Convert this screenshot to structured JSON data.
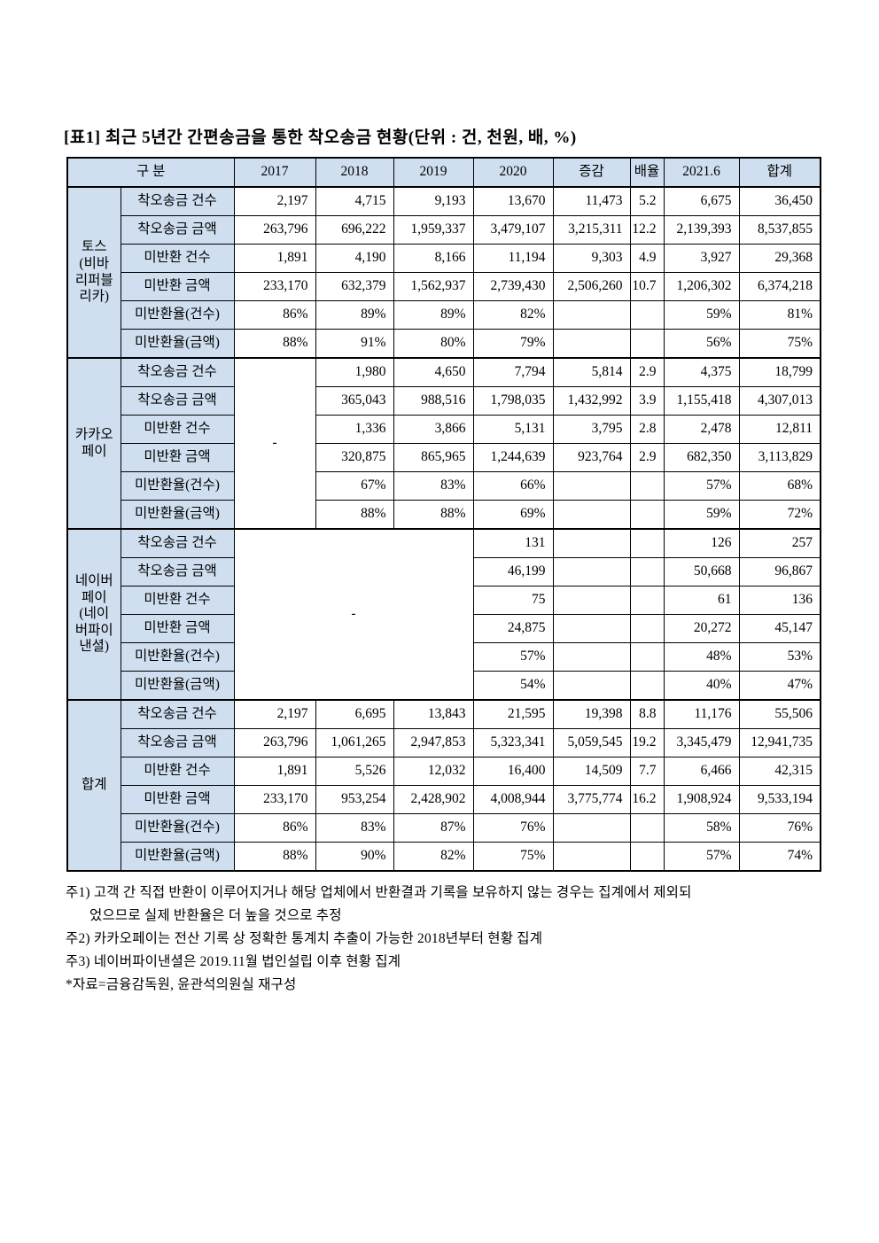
{
  "title": "[표1] 최근 5년간 간편송금을 통한 착오송금 현황(단위 : 건, 천원, 배, %)",
  "colors": {
    "header_bg": "#cfdff0",
    "border": "#000000"
  },
  "table": {
    "header": [
      "구 분",
      "2017",
      "2018",
      "2019",
      "2020",
      "증감",
      "배율",
      "2021.6",
      "합계"
    ],
    "row_labels": [
      "착오송금 건수",
      "착오송금 금액",
      "미반환 건수",
      "미반환 금액",
      "미반환율(건수)",
      "미반환율(금액)"
    ],
    "groups": [
      {
        "name": "토스\n(비바\n리퍼블\n리카)",
        "merged": null,
        "rows": [
          [
            "2,197",
            "4,715",
            "9,193",
            "13,670",
            "11,473",
            "5.2",
            "6,675",
            "36,450"
          ],
          [
            "263,796",
            "696,222",
            "1,959,337",
            "3,479,107",
            "3,215,311",
            "12.2",
            "2,139,393",
            "8,537,855"
          ],
          [
            "1,891",
            "4,190",
            "8,166",
            "11,194",
            "9,303",
            "4.9",
            "3,927",
            "29,368"
          ],
          [
            "233,170",
            "632,379",
            "1,562,937",
            "2,739,430",
            "2,506,260",
            "10.7",
            "1,206,302",
            "6,374,218"
          ],
          [
            "86%",
            "89%",
            "89%",
            "82%",
            "",
            "",
            "59%",
            "81%"
          ],
          [
            "88%",
            "91%",
            "80%",
            "79%",
            "",
            "",
            "56%",
            "75%"
          ]
        ]
      },
      {
        "name": "카카오\n페이",
        "merged": {
          "span_cols": 1,
          "text": "-"
        },
        "rows": [
          [
            "1,980",
            "4,650",
            "7,794",
            "5,814",
            "2.9",
            "4,375",
            "18,799"
          ],
          [
            "365,043",
            "988,516",
            "1,798,035",
            "1,432,992",
            "3.9",
            "1,155,418",
            "4,307,013"
          ],
          [
            "1,336",
            "3,866",
            "5,131",
            "3,795",
            "2.8",
            "2,478",
            "12,811"
          ],
          [
            "320,875",
            "865,965",
            "1,244,639",
            "923,764",
            "2.9",
            "682,350",
            "3,113,829"
          ],
          [
            "67%",
            "83%",
            "66%",
            "",
            "",
            "57%",
            "68%"
          ],
          [
            "88%",
            "88%",
            "69%",
            "",
            "",
            "59%",
            "72%"
          ]
        ]
      },
      {
        "name": "네이버\n페이\n(네이\n버파이\n낸셜)",
        "merged": {
          "span_cols": 3,
          "text": "-"
        },
        "rows": [
          [
            "131",
            "",
            "",
            "126",
            "257"
          ],
          [
            "46,199",
            "",
            "",
            "50,668",
            "96,867"
          ],
          [
            "75",
            "",
            "",
            "61",
            "136"
          ],
          [
            "24,875",
            "",
            "",
            "20,272",
            "45,147"
          ],
          [
            "57%",
            "",
            "",
            "48%",
            "53%"
          ],
          [
            "54%",
            "",
            "",
            "40%",
            "47%"
          ]
        ]
      },
      {
        "name": "합계",
        "merged": null,
        "rows": [
          [
            "2,197",
            "6,695",
            "13,843",
            "21,595",
            "19,398",
            "8.8",
            "11,176",
            "55,506"
          ],
          [
            "263,796",
            "1,061,265",
            "2,947,853",
            "5,323,341",
            "5,059,545",
            "19.2",
            "3,345,479",
            "12,941,735"
          ],
          [
            "1,891",
            "5,526",
            "12,032",
            "16,400",
            "14,509",
            "7.7",
            "6,466",
            "42,315"
          ],
          [
            "233,170",
            "953,254",
            "2,428,902",
            "4,008,944",
            "3,775,774",
            "16.2",
            "1,908,924",
            "9,533,194"
          ],
          [
            "86%",
            "83%",
            "87%",
            "76%",
            "",
            "",
            "58%",
            "76%"
          ],
          [
            "88%",
            "90%",
            "82%",
            "75%",
            "",
            "",
            "57%",
            "74%"
          ]
        ]
      }
    ]
  },
  "footnotes": [
    {
      "text": "주1) 고객 간 직접 반환이 이루어지거나 해당 업체에서 반환결과 기록을 보유하지 않는 경우는 집계에서 제외되",
      "indent": false
    },
    {
      "text": "었으므로 실제 반환율은 더 높을 것으로 추정",
      "indent": true
    },
    {
      "text": "주2) 카카오페이는 전산 기록 상 정확한 통계치 추출이 가능한 2018년부터 현황 집계",
      "indent": false
    },
    {
      "text": "주3) 네이버파이낸셜은 2019.11월 법인설립 이후 현황 집계",
      "indent": false
    },
    {
      "text": "*자료=금융감독원, 윤관석의원실 재구성",
      "indent": false
    }
  ]
}
